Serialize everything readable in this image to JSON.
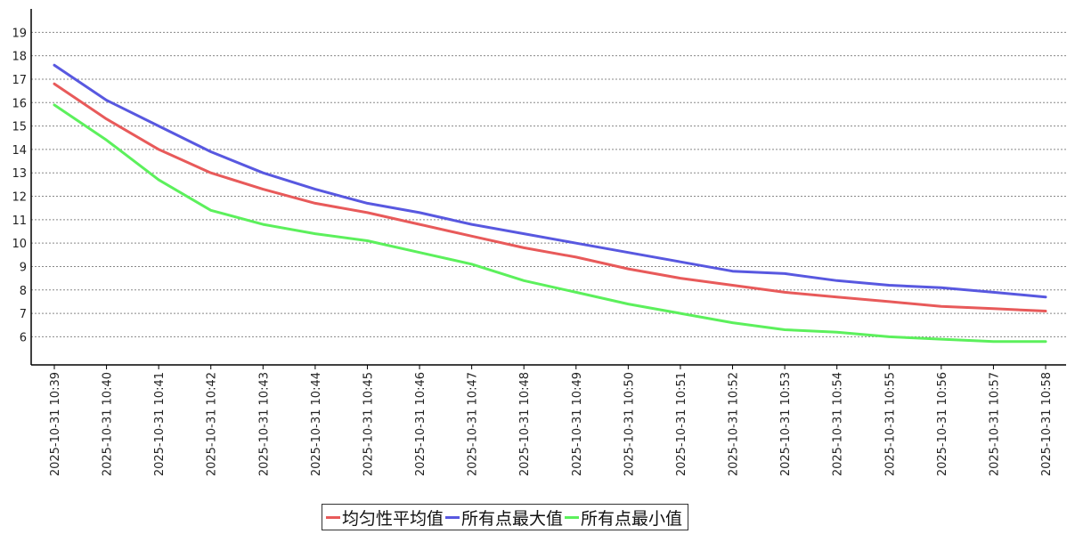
{
  "chart_data": {
    "type": "line",
    "x": [
      "2025-10-31 10:39",
      "2025-10-31 10:40",
      "2025-10-31 10:41",
      "2025-10-31 10:42",
      "2025-10-31 10:43",
      "2025-10-31 10:44",
      "2025-10-31 10:45",
      "2025-10-31 10:46",
      "2025-10-31 10:47",
      "2025-10-31 10:48",
      "2025-10-31 10:49",
      "2025-10-31 10:50",
      "2025-10-31 10:51",
      "2025-10-31 10:52",
      "2025-10-31 10:53",
      "2025-10-31 10:54",
      "2025-10-31 10:55",
      "2025-10-31 10:56",
      "2025-10-31 10:57",
      "2025-10-31 10:58"
    ],
    "series": [
      {
        "name": "均匀性平均值",
        "color": "#e85a5a",
        "values": [
          16.8,
          15.3,
          14.0,
          13.0,
          12.3,
          11.7,
          11.3,
          10.8,
          10.3,
          9.8,
          9.4,
          8.9,
          8.5,
          8.2,
          7.9,
          7.7,
          7.5,
          7.3,
          7.2,
          7.1
        ]
      },
      {
        "name": "所有点最大值",
        "color": "#5858e0",
        "values": [
          17.6,
          16.1,
          15.0,
          13.9,
          13.0,
          12.3,
          11.7,
          11.3,
          10.8,
          10.4,
          10.0,
          9.6,
          9.2,
          8.8,
          8.7,
          8.4,
          8.2,
          8.1,
          7.9,
          7.7
        ]
      },
      {
        "name": "所有点最小值",
        "color": "#5cf05c",
        "values": [
          15.9,
          14.4,
          12.7,
          11.4,
          10.8,
          10.4,
          10.1,
          9.6,
          9.1,
          8.4,
          7.9,
          7.4,
          7.0,
          6.6,
          6.3,
          6.2,
          6.0,
          5.9,
          5.8,
          5.8
        ]
      }
    ],
    "yticks": [
      6,
      7,
      8,
      9,
      10,
      11,
      12,
      13,
      14,
      15,
      16,
      17,
      18,
      19
    ],
    "ylim": [
      4.8,
      20.0
    ],
    "grid": true,
    "legend_position": "bottom-center"
  }
}
